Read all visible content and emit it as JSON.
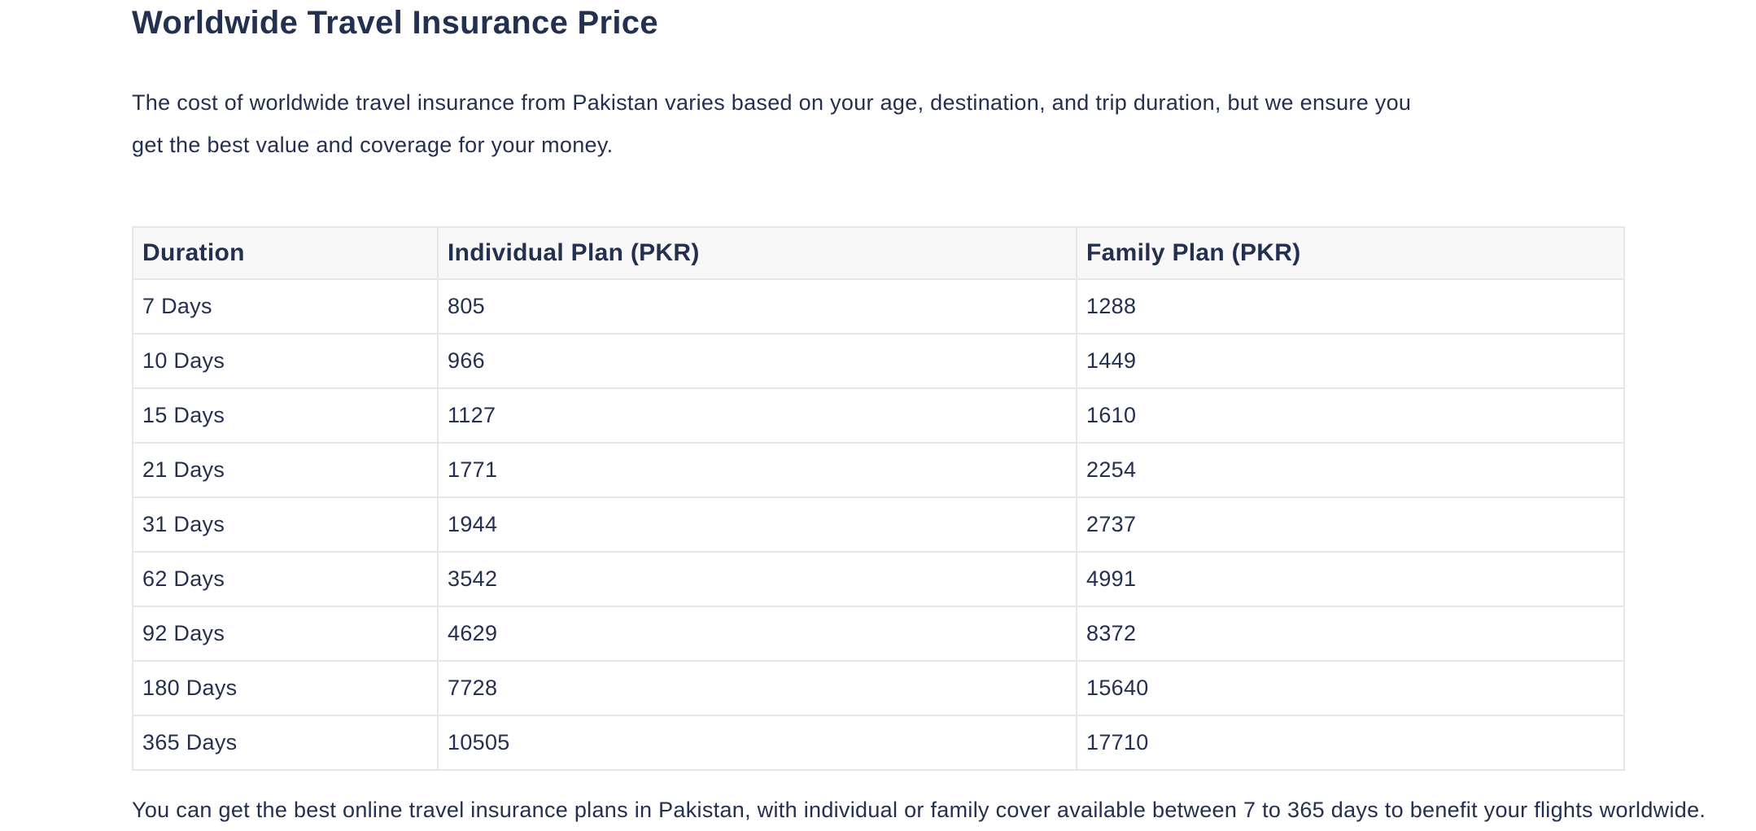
{
  "page": {
    "title": "Worldwide Travel Insurance Price",
    "intro_lines": [
      "The cost of worldwide travel insurance from Pakistan varies based on your age, destination, and trip duration, but we ensure you",
      "get the best value and coverage for your money."
    ],
    "clipped_line": "You can get the best online travel insurance plans in Pakistan, with individual or family cover available between 7 to 365 days to benefit your flights worldwide."
  },
  "table": {
    "columns": [
      "Duration",
      "Individual Plan (PKR)",
      "Family Plan (PKR)"
    ],
    "rows": [
      [
        "7 Days",
        "805",
        "1288"
      ],
      [
        "10 Days",
        "966",
        "1449"
      ],
      [
        "15 Days",
        "1127",
        "1610"
      ],
      [
        "21 Days",
        "1771",
        "2254"
      ],
      [
        "31 Days",
        "1944",
        "2737"
      ],
      [
        "62 Days",
        "3542",
        "4991"
      ],
      [
        "92 Days",
        "4629",
        "8372"
      ],
      [
        "180 Days",
        "7728",
        "15640"
      ],
      [
        "365 Days",
        "10505",
        "17710"
      ]
    ]
  },
  "colors": {
    "text": "#24304f",
    "header_bg": "#f8f8f8",
    "border": "#e7e7e7",
    "background": "#ffffff"
  }
}
